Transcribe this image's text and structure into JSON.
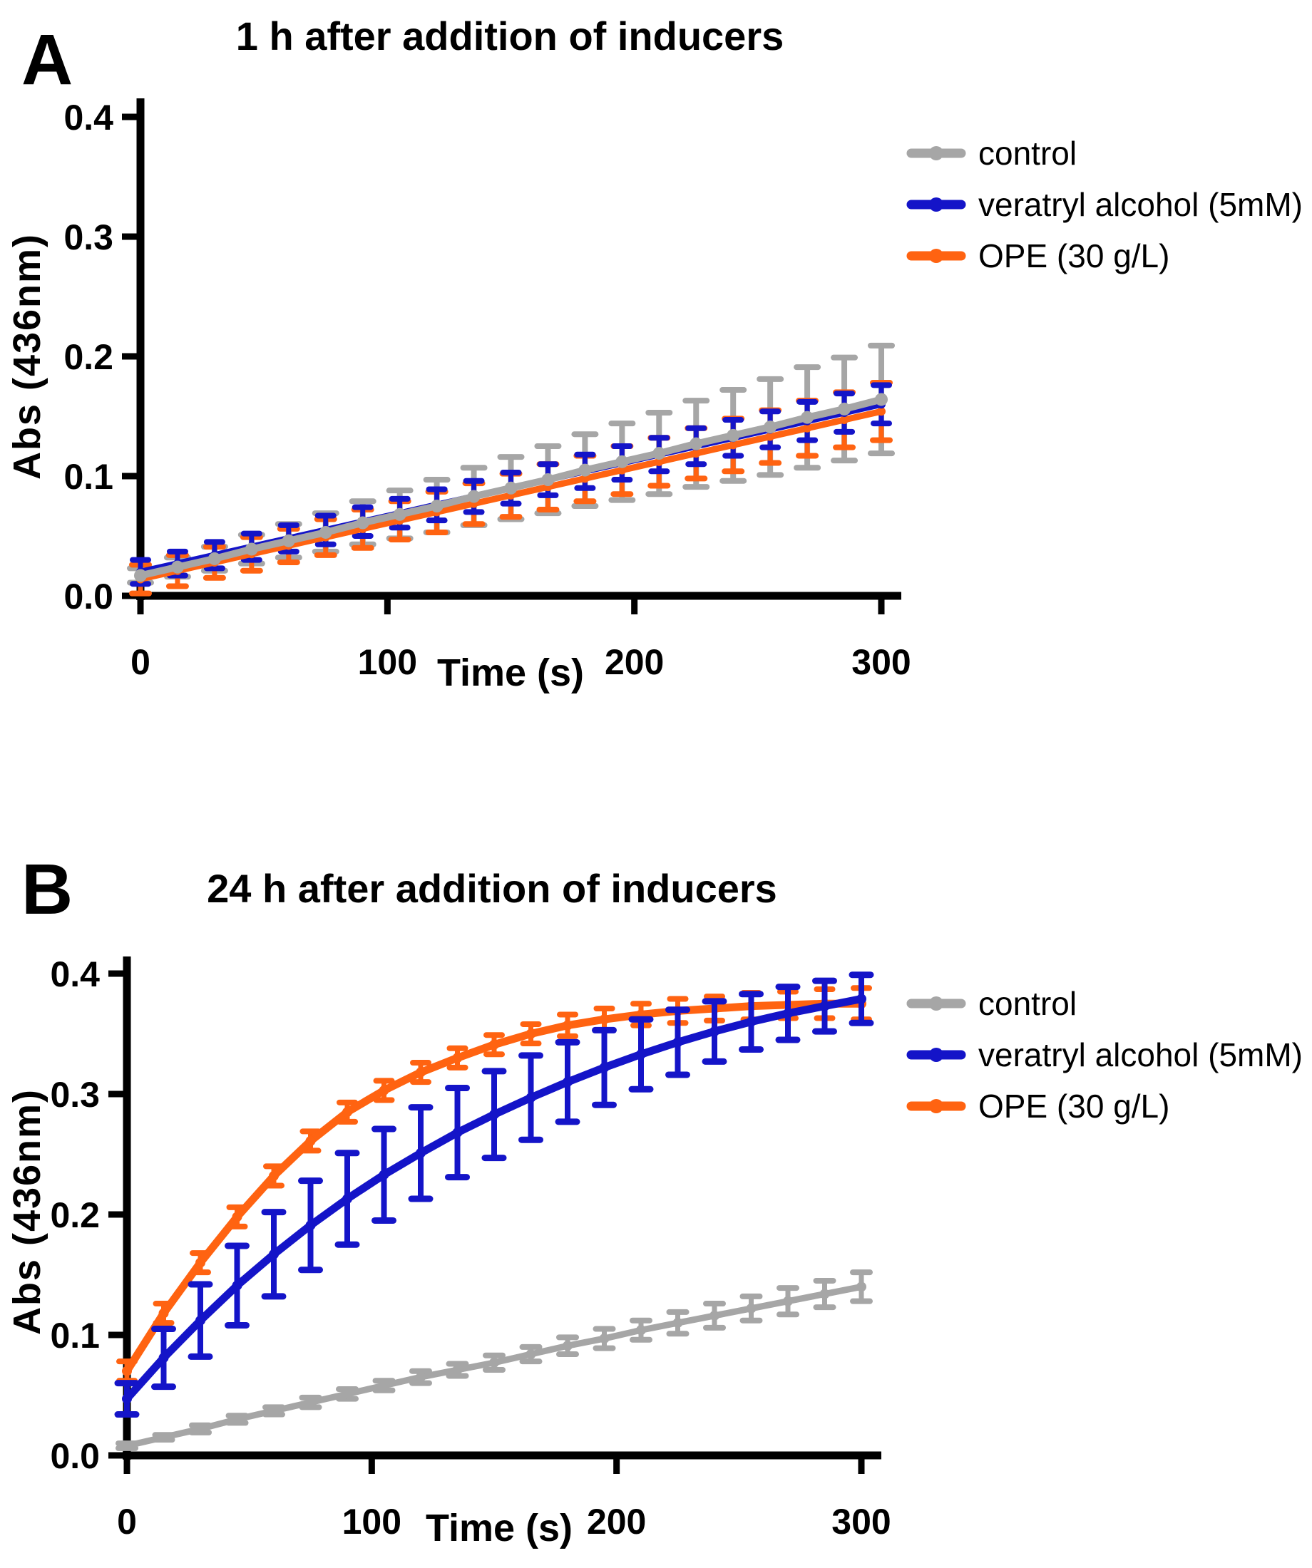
{
  "figure": {
    "background": "#ffffff"
  },
  "panels": [
    {
      "letter": "A",
      "title": "1 h after addition of inducers",
      "x_label": "Time (s)",
      "y_label": "Abs (436nm)",
      "legend": [
        {
          "label": "control"
        },
        {
          "label": "veratryl alcohol (5mM)"
        },
        {
          "label": "OPE (30 g/L)"
        }
      ]
    },
    {
      "letter": "B",
      "title": "24 h after addition of inducers",
      "x_label": "Time (s)",
      "y_label": "Abs (436nm)",
      "legend": [
        {
          "label": "control"
        },
        {
          "label": "veratryl alcohol (5mM)"
        },
        {
          "label": "OPE (30 g/L)"
        }
      ]
    }
  ],
  "colors": {
    "axis": "#000000",
    "control": "#A6A6A6",
    "veratryl": "#1414C8",
    "ope": "#FF6311"
  },
  "chart_data": [
    {
      "type": "line",
      "title": "1 h after addition of inducers",
      "xlabel": "Time (s)",
      "ylabel": "Abs (436nm)",
      "xlim": [
        0,
        300
      ],
      "ylim": [
        0.0,
        0.4
      ],
      "x_ticks": [
        0,
        100,
        200,
        300
      ],
      "x_tick_labels": [
        "0",
        "100",
        "200",
        "300"
      ],
      "y_ticks": [
        0.0,
        0.1,
        0.2,
        0.3,
        0.4
      ],
      "y_tick_labels": [
        "0.0",
        "0.1",
        "0.2",
        "0.3",
        "0.4"
      ],
      "grid": false,
      "error_bars": true,
      "legend_position": "right",
      "x": [
        0,
        15,
        30,
        45,
        60,
        75,
        90,
        105,
        120,
        135,
        150,
        165,
        180,
        195,
        210,
        225,
        240,
        255,
        270,
        285,
        300
      ],
      "series": [
        {
          "name": "control",
          "color": "#A6A6A6",
          "values": [
            0.017,
            0.024,
            0.031,
            0.039,
            0.046,
            0.053,
            0.061,
            0.068,
            0.075,
            0.083,
            0.09,
            0.097,
            0.105,
            0.112,
            0.119,
            0.127,
            0.134,
            0.141,
            0.149,
            0.156,
            0.164
          ],
          "errors": [
            0.006,
            0.008,
            0.01,
            0.012,
            0.014,
            0.016,
            0.018,
            0.02,
            0.022,
            0.024,
            0.026,
            0.028,
            0.03,
            0.032,
            0.034,
            0.036,
            0.038,
            0.04,
            0.042,
            0.043,
            0.045
          ]
        },
        {
          "name": "veratryl alcohol (5mM)",
          "color": "#1414C8",
          "values": [
            0.02,
            0.027,
            0.034,
            0.041,
            0.048,
            0.055,
            0.062,
            0.069,
            0.076,
            0.083,
            0.09,
            0.097,
            0.104,
            0.111,
            0.118,
            0.125,
            0.132,
            0.139,
            0.146,
            0.153,
            0.16
          ],
          "errors": [
            0.01,
            0.01,
            0.011,
            0.011,
            0.011,
            0.012,
            0.012,
            0.012,
            0.013,
            0.013,
            0.013,
            0.013,
            0.014,
            0.014,
            0.014,
            0.015,
            0.015,
            0.015,
            0.016,
            0.016,
            0.016
          ]
        },
        {
          "name": "OPE (30 g/L)",
          "color": "#FF6311",
          "values": [
            0.014,
            0.021,
            0.028,
            0.035,
            0.042,
            0.049,
            0.056,
            0.063,
            0.07,
            0.077,
            0.084,
            0.091,
            0.098,
            0.105,
            0.112,
            0.119,
            0.126,
            0.133,
            0.14,
            0.147,
            0.154
          ],
          "errors": [
            0.012,
            0.013,
            0.013,
            0.014,
            0.014,
            0.015,
            0.016,
            0.016,
            0.017,
            0.017,
            0.018,
            0.019,
            0.019,
            0.02,
            0.02,
            0.021,
            0.022,
            0.022,
            0.023,
            0.023,
            0.024
          ]
        }
      ]
    },
    {
      "type": "line",
      "title": "24 h after addition of inducers",
      "xlabel": "Time (s)",
      "ylabel": "Abs (436nm)",
      "xlim": [
        0,
        300
      ],
      "ylim": [
        0.0,
        0.4
      ],
      "x_ticks": [
        0,
        100,
        200,
        300
      ],
      "x_tick_labels": [
        "0",
        "100",
        "200",
        "300"
      ],
      "y_ticks": [
        0.0,
        0.1,
        0.2,
        0.3,
        0.4
      ],
      "y_tick_labels": [
        "0.0",
        "0.1",
        "0.2",
        "0.3",
        "0.4"
      ],
      "grid": false,
      "error_bars": true,
      "legend_position": "right",
      "x": [
        0,
        15,
        30,
        45,
        60,
        75,
        90,
        105,
        120,
        135,
        150,
        165,
        180,
        195,
        210,
        225,
        240,
        255,
        270,
        285,
        300
      ],
      "series": [
        {
          "name": "control",
          "color": "#A6A6A6",
          "values": [
            0.008,
            0.015,
            0.022,
            0.03,
            0.037,
            0.044,
            0.051,
            0.058,
            0.065,
            0.071,
            0.077,
            0.084,
            0.091,
            0.097,
            0.104,
            0.11,
            0.116,
            0.122,
            0.128,
            0.134,
            0.14
          ],
          "errors": [
            0.002,
            0.002,
            0.003,
            0.003,
            0.003,
            0.004,
            0.004,
            0.004,
            0.005,
            0.005,
            0.006,
            0.006,
            0.007,
            0.008,
            0.008,
            0.009,
            0.01,
            0.01,
            0.011,
            0.011,
            0.012
          ]
        },
        {
          "name": "veratryl alcohol (5mM)",
          "color": "#1414C8",
          "values": [
            0.047,
            0.081,
            0.112,
            0.141,
            0.167,
            0.191,
            0.213,
            0.233,
            0.251,
            0.268,
            0.283,
            0.297,
            0.31,
            0.322,
            0.333,
            0.343,
            0.352,
            0.36,
            0.367,
            0.373,
            0.379
          ],
          "errors": [
            0.013,
            0.024,
            0.03,
            0.033,
            0.035,
            0.037,
            0.038,
            0.038,
            0.038,
            0.037,
            0.036,
            0.035,
            0.033,
            0.031,
            0.029,
            0.027,
            0.025,
            0.023,
            0.022,
            0.021,
            0.02
          ]
        },
        {
          "name": "OPE (30 g/L)",
          "color": "#FF6311",
          "values": [
            0.07,
            0.118,
            0.16,
            0.198,
            0.232,
            0.261,
            0.285,
            0.303,
            0.318,
            0.33,
            0.341,
            0.35,
            0.357,
            0.362,
            0.366,
            0.369,
            0.371,
            0.373,
            0.374,
            0.375,
            0.375
          ],
          "errors": [
            0.008,
            0.008,
            0.008,
            0.008,
            0.008,
            0.008,
            0.008,
            0.008,
            0.008,
            0.008,
            0.008,
            0.008,
            0.009,
            0.009,
            0.009,
            0.01,
            0.01,
            0.011,
            0.011,
            0.012,
            0.013
          ]
        }
      ]
    }
  ]
}
